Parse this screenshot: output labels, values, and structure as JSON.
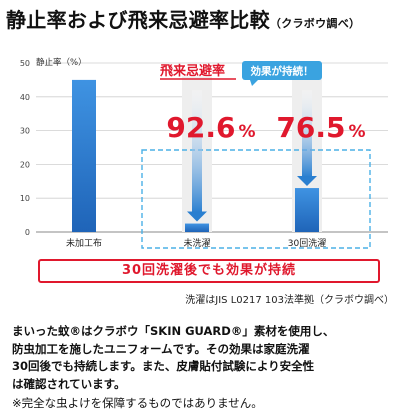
{
  "title": "静止率および飛来忌避率比較",
  "title_sub": "（クラボウ調べ）",
  "chart_data": {
    "type": "bar",
    "ylabel": "静止率（%）",
    "ylim": [
      0,
      50
    ],
    "yticks": [
      0,
      10,
      20,
      30,
      40,
      50
    ],
    "categories": [
      "未加工布",
      "未洗濯",
      "30回洗濯"
    ],
    "values": [
      45,
      2.5,
      13
    ],
    "annotations": {
      "heading": "飛来忌避率",
      "badge": "効果が持続！",
      "rates": [
        {
          "category": "未洗濯",
          "number": "92.6",
          "unit": "%"
        },
        {
          "category": "30回洗濯",
          "number": "76.5",
          "unit": "%"
        }
      ]
    },
    "grid": true
  },
  "banner": "30回洗濯後でも効果が持続",
  "source": "洗濯はJIS L0217 103法準拠（クラボウ調べ）",
  "description": [
    "まいった蚊®はクラボウ「SKIN GUARD®」素材を使用し、",
    "防虫加工を施したユニフォームです。その効果は家庭洗濯",
    "30回後でも持続します。また、皮膚貼付試験により安全性",
    "は確認されています。"
  ],
  "note": "※完全な虫よけを保障するものではありません。",
  "colors": {
    "accent_red": "#e0182d",
    "bar_blue": "#2f7fd4",
    "badge_blue": "#3aa3e0",
    "dashed_blue": "#4bb0e6"
  }
}
